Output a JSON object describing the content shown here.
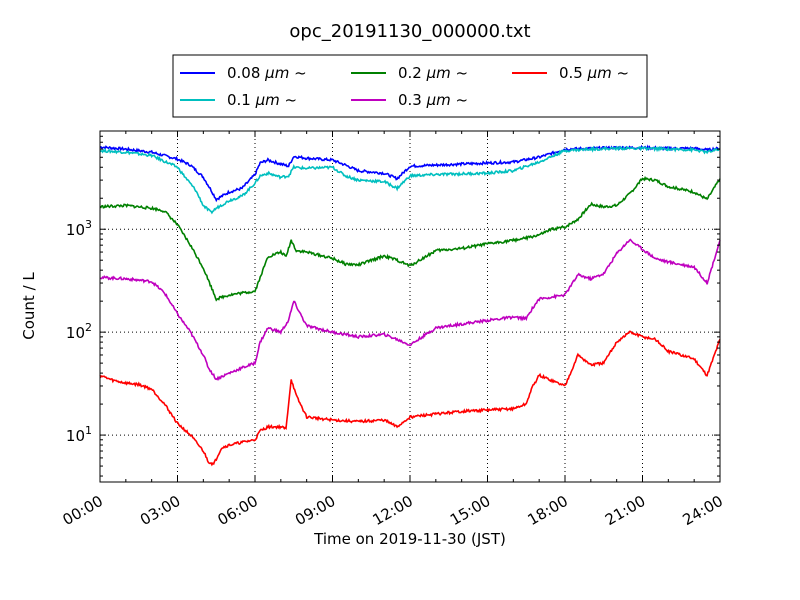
{
  "chart_data": {
    "type": "line",
    "title": "opc_20191130_000000.txt",
    "xlabel": "Time on 2019-11-30 (JST)",
    "ylabel": "Count / L",
    "y_scale": "log",
    "xlim": [
      0,
      24
    ],
    "ylim": [
      3.5,
      9000
    ],
    "x_tick_labels": [
      "00:00",
      "03:00",
      "06:00",
      "09:00",
      "12:00",
      "15:00",
      "18:00",
      "21:00",
      "24:00"
    ],
    "x_ticks": [
      0,
      3,
      6,
      9,
      12,
      15,
      18,
      21,
      24
    ],
    "y_tick_labels": [
      {
        "base": "10",
        "exp": "1"
      },
      {
        "base": "10",
        "exp": "2"
      },
      {
        "base": "10",
        "exp": "3"
      }
    ],
    "y_ticks": [
      10,
      100,
      1000
    ],
    "grid": true,
    "legend_position": "top-center, outside the plot area",
    "series": [
      {
        "name": "0.08 μm ~",
        "name_prefix": "0.08 ",
        "name_unit": "μm",
        "name_suffix": " ~",
        "color": "#0000ff",
        "x": [
          0,
          1,
          2,
          3,
          3.5,
          4,
          4.3,
          4.5,
          5,
          5.5,
          6,
          6.2,
          6.5,
          7,
          7.3,
          7.5,
          8,
          9,
          9.5,
          10,
          11,
          11.5,
          12,
          13,
          15,
          16,
          17,
          18,
          19,
          20,
          21,
          22,
          23,
          23.5,
          24
        ],
        "y": [
          6300,
          6000,
          5600,
          4800,
          4200,
          3200,
          2400,
          1950,
          2300,
          2500,
          3400,
          4400,
          4700,
          4300,
          4100,
          5100,
          4900,
          4700,
          4200,
          3700,
          3500,
          3100,
          4100,
          4200,
          4400,
          4500,
          5000,
          6000,
          6100,
          6200,
          6200,
          6100,
          6100,
          5900,
          6100
        ]
      },
      {
        "name": "0.1 μm ~",
        "name_prefix": "0.1 ",
        "name_unit": "μm",
        "name_suffix": " ~",
        "color": "#00bfbf",
        "x": [
          0,
          1,
          2,
          3,
          3.3,
          3.7,
          4,
          4.3,
          4.5,
          5,
          5.5,
          6,
          6.2,
          6.5,
          7,
          7.3,
          7.5,
          8,
          9,
          9.5,
          10,
          11,
          11.5,
          12,
          13,
          15,
          16,
          17,
          18,
          19,
          20,
          21,
          22,
          23,
          23.5,
          24
        ],
        "y": [
          5800,
          5600,
          5200,
          4000,
          3200,
          2400,
          1700,
          1450,
          1600,
          1900,
          2100,
          2800,
          3300,
          3500,
          3200,
          3300,
          4000,
          3900,
          4000,
          3300,
          3000,
          2900,
          2500,
          3300,
          3400,
          3500,
          3700,
          4500,
          5800,
          6000,
          6100,
          6100,
          6000,
          5900,
          5600,
          6000
        ]
      },
      {
        "name": "0.2 μm ~",
        "name_prefix": "0.2 ",
        "name_unit": "μm",
        "name_suffix": " ~",
        "color": "#008000",
        "x": [
          0,
          1,
          1.5,
          2,
          2.5,
          3,
          3.5,
          4,
          4.5,
          5,
          5.5,
          6,
          6.2,
          6.5,
          7,
          7.2,
          7.4,
          7.6,
          8,
          9,
          9.5,
          10,
          11,
          11.5,
          12,
          13,
          14,
          15,
          16,
          16.5,
          17,
          17.5,
          18,
          18.5,
          19,
          19.5,
          20,
          20.5,
          21,
          21.5,
          22,
          23,
          23.5,
          24
        ],
        "y": [
          1650,
          1700,
          1650,
          1600,
          1500,
          1100,
          700,
          420,
          210,
          230,
          240,
          250,
          340,
          540,
          600,
          540,
          780,
          620,
          600,
          520,
          460,
          450,
          550,
          500,
          440,
          620,
          650,
          720,
          780,
          820,
          880,
          1000,
          1050,
          1250,
          1750,
          1650,
          1700,
          2200,
          3100,
          3000,
          2600,
          2300,
          1950,
          3100
        ]
      },
      {
        "name": "0.3 μm ~",
        "name_prefix": "0.3 ",
        "name_unit": "μm",
        "name_suffix": " ~",
        "color": "#bf00bf",
        "x": [
          0,
          1,
          1.5,
          2,
          2.5,
          3,
          3.5,
          4,
          4.2,
          4.5,
          5,
          5.5,
          6,
          6.2,
          6.5,
          7,
          7.3,
          7.5,
          8,
          9,
          9.5,
          10,
          11,
          11.5,
          12,
          13,
          14,
          15,
          16,
          16.5,
          16.7,
          17,
          18,
          18.5,
          19,
          19.5,
          20,
          20.5,
          21,
          21.5,
          22,
          23,
          23.5,
          24
        ],
        "y": [
          340,
          330,
          320,
          310,
          240,
          150,
          100,
          60,
          45,
          35,
          40,
          45,
          50,
          80,
          110,
          100,
          130,
          200,
          115,
          100,
          95,
          90,
          95,
          85,
          75,
          110,
          120,
          130,
          140,
          135,
          165,
          210,
          230,
          360,
          330,
          370,
          580,
          790,
          640,
          520,
          480,
          430,
          300,
          780
        ]
      },
      {
        "name": "0.5 μm ~",
        "name_prefix": "0.5 ",
        "name_unit": "μm",
        "name_suffix": " ~",
        "color": "#ff0000",
        "x": [
          0,
          0.5,
          1,
          1.5,
          2,
          2.5,
          3,
          3.5,
          4,
          4.2,
          4.4,
          4.7,
          5,
          5.5,
          6,
          6.2,
          6.5,
          7,
          7.2,
          7.4,
          7.6,
          8,
          9,
          10,
          11,
          11.5,
          12,
          13,
          14,
          15,
          16,
          16.5,
          16.7,
          17,
          18,
          18.5,
          19,
          19.5,
          20,
          20.5,
          21,
          21.5,
          22,
          23,
          23.5,
          24
        ],
        "y": [
          38,
          34,
          32,
          31,
          28,
          20,
          13,
          10,
          7,
          5.5,
          5.2,
          7.5,
          8,
          8.5,
          9,
          11,
          12,
          12,
          11.5,
          35,
          24,
          15,
          14,
          13.5,
          14,
          12,
          15,
          16,
          17,
          17.5,
          18,
          20,
          28,
          38,
          30,
          60,
          48,
          50,
          80,
          100,
          90,
          85,
          65,
          55,
          38,
          85
        ]
      }
    ]
  }
}
